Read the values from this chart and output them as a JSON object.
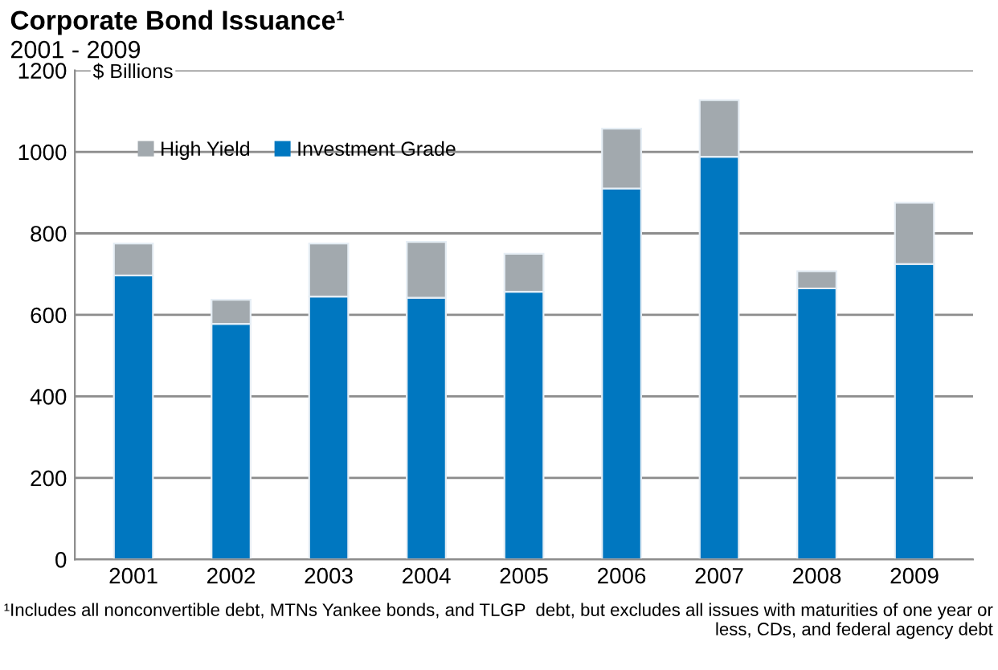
{
  "chart_data": {
    "type": "bar",
    "title": "Corporate Bond Issuance¹",
    "subtitle": "2001 - 2009",
    "ylabel": "$ Billions",
    "categories": [
      "2001",
      "2002",
      "2003",
      "2004",
      "2005",
      "2006",
      "2007",
      "2008",
      "2009"
    ],
    "stacked": true,
    "series": [
      {
        "name": "Investment Grade",
        "color": "#0077c0",
        "values": [
          697,
          578,
          645,
          642,
          657,
          910,
          988,
          665,
          725
        ]
      },
      {
        "name": "High Yield",
        "color": "#a2a9ae",
        "values": [
          78,
          59,
          130,
          137,
          93,
          147,
          139,
          42,
          150
        ]
      }
    ],
    "ylim": [
      0,
      1200
    ],
    "yticks": [
      0,
      200,
      400,
      600,
      800,
      1000,
      1200
    ],
    "grid": "y",
    "legend": "top left",
    "annotations": [
      "¹Includes all nonconvertible debt, MTNs Yankee bonds, and TLGP  debt, but excludes all issues with maturities of one year or less, CDs, and federal agency debt"
    ]
  }
}
